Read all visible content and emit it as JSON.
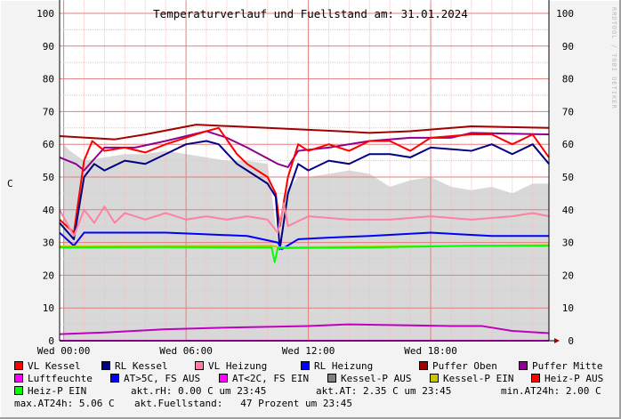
{
  "chart_data": {
    "type": "line",
    "title": "Temperaturverlauf und Fuellstand am: 31.01.2024",
    "ylabel": "C",
    "ylim": [
      0,
      104
    ],
    "xlim_hours": [
      -0.2,
      23.8
    ],
    "yticks": [
      0,
      10,
      20,
      30,
      40,
      50,
      60,
      70,
      80,
      90,
      100
    ],
    "xticks": [
      {
        "h": 0,
        "label": "Wed 00:00"
      },
      {
        "h": 6,
        "label": "Wed 06:00"
      },
      {
        "h": 12,
        "label": "Wed 12:00"
      },
      {
        "h": 18,
        "label": "Wed 18:00"
      }
    ],
    "grid": true,
    "legend_position": "bottom",
    "area": {
      "name": "Kessel-P AUS",
      "color": "#d8d8d8",
      "points": [
        [
          0,
          60
        ],
        [
          0.3,
          58
        ],
        [
          1,
          55
        ],
        [
          2,
          56
        ],
        [
          3,
          57
        ],
        [
          4,
          57
        ],
        [
          5,
          58
        ],
        [
          6,
          57
        ],
        [
          7,
          56
        ],
        [
          8,
          55
        ],
        [
          9,
          55
        ],
        [
          10,
          54
        ],
        [
          10.3,
          40
        ],
        [
          10.5,
          30
        ],
        [
          10.8,
          45
        ],
        [
          11.5,
          50
        ],
        [
          12,
          50
        ],
        [
          13,
          51
        ],
        [
          14,
          52
        ],
        [
          15,
          51
        ],
        [
          16,
          47
        ],
        [
          17,
          49
        ],
        [
          18,
          50
        ],
        [
          19,
          47
        ],
        [
          20,
          46
        ],
        [
          21,
          47
        ],
        [
          22,
          45
        ],
        [
          23,
          48
        ],
        [
          23.8,
          48
        ]
      ]
    },
    "series": [
      {
        "name": "Puffer Oben",
        "color": "#a00000",
        "points": [
          [
            -0.2,
            62.5
          ],
          [
            2.5,
            61.5
          ],
          [
            4,
            63
          ],
          [
            6.5,
            66
          ],
          [
            10,
            65
          ],
          [
            13.5,
            64
          ],
          [
            15,
            63.5
          ],
          [
            17,
            64
          ],
          [
            20,
            65.5
          ],
          [
            23.8,
            65
          ]
        ]
      },
      {
        "name": "Puffer Mitte",
        "color": "#900090",
        "points": [
          [
            -0.2,
            56
          ],
          [
            0.6,
            54
          ],
          [
            1,
            52
          ],
          [
            2,
            59
          ],
          [
            3.5,
            59
          ],
          [
            5,
            61
          ],
          [
            7,
            64
          ],
          [
            8,
            62
          ],
          [
            9,
            59
          ],
          [
            10.5,
            54
          ],
          [
            11,
            53
          ],
          [
            11.5,
            58
          ],
          [
            13,
            59
          ],
          [
            15,
            61
          ],
          [
            17,
            62
          ],
          [
            19,
            62
          ],
          [
            20,
            63.5
          ],
          [
            23.8,
            63
          ]
        ]
      },
      {
        "name": "VL Kessel",
        "color": "#ff0000",
        "points": [
          [
            -0.2,
            37
          ],
          [
            0.5,
            33
          ],
          [
            1,
            55
          ],
          [
            1.4,
            61
          ],
          [
            2,
            58
          ],
          [
            3,
            59
          ],
          [
            4,
            57.5
          ],
          [
            5,
            60
          ],
          [
            6,
            62
          ],
          [
            7,
            64
          ],
          [
            7.6,
            65
          ],
          [
            8.5,
            57
          ],
          [
            9,
            54
          ],
          [
            10,
            50
          ],
          [
            10.4,
            45
          ],
          [
            10.6,
            35
          ],
          [
            11,
            50
          ],
          [
            11.5,
            60
          ],
          [
            12,
            58
          ],
          [
            13,
            60
          ],
          [
            14,
            58
          ],
          [
            15,
            61
          ],
          [
            16,
            61
          ],
          [
            17,
            58
          ],
          [
            18,
            62
          ],
          [
            20,
            63
          ],
          [
            21,
            63
          ],
          [
            22,
            60
          ],
          [
            23,
            63
          ],
          [
            23.8,
            56
          ]
        ]
      },
      {
        "name": "RL Kessel",
        "color": "#000080",
        "points": [
          [
            -0.2,
            36
          ],
          [
            0.5,
            31
          ],
          [
            1,
            50
          ],
          [
            1.5,
            54
          ],
          [
            2,
            52
          ],
          [
            3,
            55
          ],
          [
            4,
            54
          ],
          [
            5,
            57
          ],
          [
            6,
            60
          ],
          [
            7,
            61
          ],
          [
            7.6,
            60
          ],
          [
            8.5,
            54
          ],
          [
            9,
            52
          ],
          [
            10,
            48
          ],
          [
            10.4,
            44
          ],
          [
            10.6,
            28
          ],
          [
            11,
            45
          ],
          [
            11.5,
            54
          ],
          [
            12,
            52
          ],
          [
            13,
            55
          ],
          [
            14,
            54
          ],
          [
            15,
            57
          ],
          [
            16,
            57
          ],
          [
            17,
            56
          ],
          [
            18,
            59
          ],
          [
            20,
            58
          ],
          [
            21,
            60
          ],
          [
            22,
            57
          ],
          [
            23,
            60
          ],
          [
            23.8,
            54
          ]
        ]
      },
      {
        "name": "VL Heizung",
        "color": "#ff80a0",
        "points": [
          [
            -0.2,
            40
          ],
          [
            0.5,
            32
          ],
          [
            1,
            40
          ],
          [
            1.5,
            36
          ],
          [
            2,
            41
          ],
          [
            2.5,
            36
          ],
          [
            3,
            39
          ],
          [
            4,
            37
          ],
          [
            5,
            39
          ],
          [
            6,
            37
          ],
          [
            7,
            38
          ],
          [
            8,
            37
          ],
          [
            9,
            38
          ],
          [
            10,
            37
          ],
          [
            10.5,
            33
          ],
          [
            10.8,
            42
          ],
          [
            11,
            35
          ],
          [
            12,
            38
          ],
          [
            14,
            37
          ],
          [
            16,
            37
          ],
          [
            18,
            38
          ],
          [
            20,
            37
          ],
          [
            22,
            38
          ],
          [
            23,
            39
          ],
          [
            23.8,
            38
          ]
        ]
      },
      {
        "name": "RL Heizung",
        "color": "#0000ff",
        "points": [
          [
            -0.2,
            33
          ],
          [
            0.5,
            29
          ],
          [
            1,
            33
          ],
          [
            3,
            33
          ],
          [
            5,
            33
          ],
          [
            7,
            32.5
          ],
          [
            9,
            32
          ],
          [
            10.5,
            30
          ],
          [
            10.7,
            28
          ],
          [
            11.5,
            31
          ],
          [
            13,
            31.5
          ],
          [
            15,
            32
          ],
          [
            18,
            33
          ],
          [
            21,
            32
          ],
          [
            23.8,
            32
          ]
        ]
      },
      {
        "name": "Kessel-P EIN",
        "color": "#c8c800",
        "points": [
          [
            -0.2,
            28.8
          ],
          [
            10.2,
            29
          ],
          [
            10.6,
            28.5
          ],
          [
            23.8,
            29.2
          ]
        ]
      },
      {
        "name": "Heiz-P EIN",
        "color": "#00ff00",
        "points": [
          [
            -0.2,
            28.5
          ],
          [
            5,
            28.6
          ],
          [
            10.2,
            28.5
          ],
          [
            10.35,
            24
          ],
          [
            10.5,
            28.3
          ],
          [
            15,
            28.5
          ],
          [
            20,
            29
          ],
          [
            23.8,
            29
          ]
        ]
      },
      {
        "name": "AT",
        "color": "#c000c0",
        "points": [
          [
            -0.2,
            2
          ],
          [
            2,
            2.5
          ],
          [
            5,
            3.5
          ],
          [
            8,
            4
          ],
          [
            12,
            4.5
          ],
          [
            14,
            5
          ],
          [
            16,
            4.8
          ],
          [
            19,
            4.5
          ],
          [
            20.5,
            4.5
          ],
          [
            22,
            3
          ],
          [
            23.8,
            2.3
          ]
        ]
      },
      {
        "name": "Luftfeuchte",
        "color": "#ff00ff",
        "points": [
          [
            -0.2,
            0
          ],
          [
            23.8,
            0
          ]
        ]
      }
    ]
  },
  "legend": [
    [
      {
        "label": "VL Kessel",
        "color": "#ff0000"
      },
      {
        "label": "RL Kessel",
        "color": "#000080"
      },
      {
        "label": "VL Heizung",
        "color": "#ff80a0"
      },
      {
        "label": "RL Heizung",
        "color": "#0000ff"
      },
      {
        "label": "Puffer Oben",
        "color": "#a00000"
      },
      {
        "label": "Puffer Mitte",
        "color": "#900090"
      }
    ],
    [
      {
        "label": "Luftfeuchte",
        "color": "#ff00ff"
      },
      {
        "label": "AT>5C, FS AUS",
        "color": "#0000ff"
      },
      {
        "label": "AT<2C, FS EIN",
        "color": "#ff00ff"
      },
      {
        "label": "Kessel-P AUS",
        "color": "#808080"
      },
      {
        "label": "Kessel-P EIN",
        "color": "#c8c800"
      },
      {
        "label": "Heiz-P AUS",
        "color": "#ff0000"
      }
    ],
    [
      {
        "label": "Heiz-P EIN",
        "color": "#00ff00"
      }
    ]
  ],
  "stats": {
    "rh": "akt.rH: 0.00 C um 23:45",
    "at": "akt.AT: 2.35 C um 23:45",
    "min": "min.AT24h: 2.00 C",
    "max": "max.AT24h: 5.06 C",
    "fill": "akt.Fuellstand:   47 Prozent um 23:45"
  },
  "watermark": "RRDTOOL / TOBI OETIKER"
}
